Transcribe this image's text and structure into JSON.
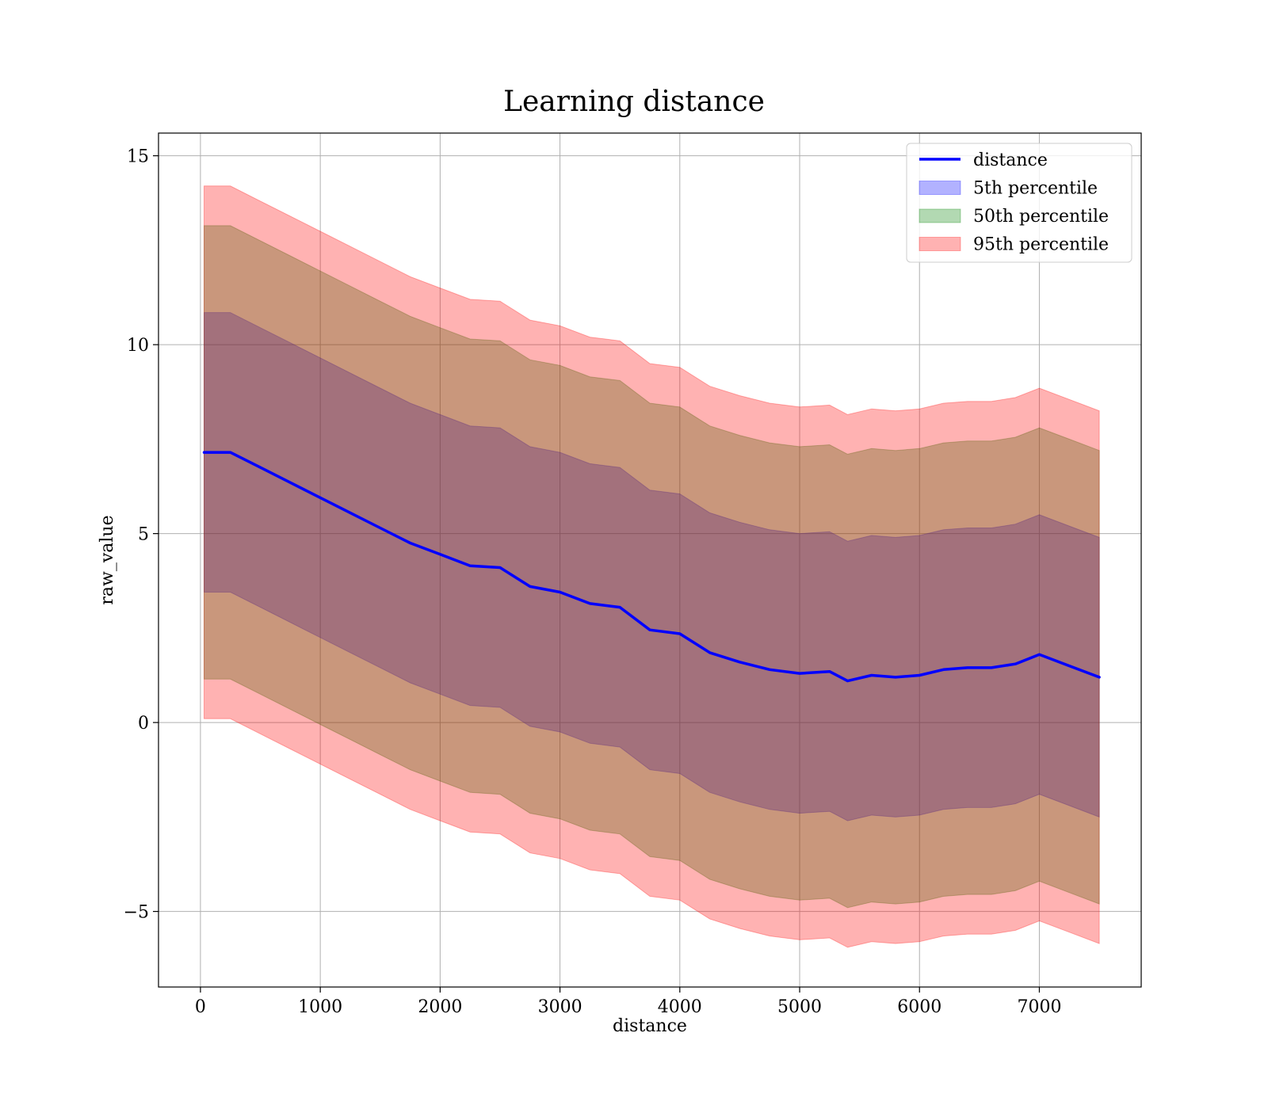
{
  "chart_data": {
    "type": "line",
    "title": "Learning distance",
    "xlabel": "distance",
    "ylabel": "raw_value",
    "xlim": [
      -350,
      7850
    ],
    "ylim": [
      -7,
      15.6
    ],
    "xticks": [
      0,
      1000,
      2000,
      3000,
      4000,
      5000,
      6000,
      7000
    ],
    "xtick_labels": [
      "0",
      "1000",
      "2000",
      "3000",
      "4000",
      "5000",
      "6000",
      "7000"
    ],
    "yticks": [
      -5,
      0,
      5,
      10,
      15
    ],
    "ytick_labels": [
      "−5",
      "0",
      "5",
      "10",
      "15"
    ],
    "grid": true,
    "legend_position": "top-right",
    "x": [
      30,
      250,
      500,
      750,
      1000,
      1250,
      1500,
      1750,
      2000,
      2250,
      2500,
      2750,
      3000,
      3250,
      3500,
      3750,
      4000,
      4250,
      4500,
      4750,
      5000,
      5250,
      5400,
      5600,
      5800,
      6000,
      6200,
      6400,
      6600,
      6800,
      7000,
      7250,
      7500
    ],
    "series": [
      {
        "name": "distance",
        "kind": "line",
        "color": "#0000ff",
        "values": [
          7.15,
          7.15,
          6.75,
          6.35,
          5.95,
          5.55,
          5.15,
          4.75,
          4.45,
          4.15,
          4.1,
          3.6,
          3.45,
          3.15,
          3.05,
          2.45,
          2.35,
          1.85,
          1.6,
          1.4,
          1.3,
          1.35,
          1.1,
          1.25,
          1.2,
          1.25,
          1.4,
          1.45,
          1.45,
          1.55,
          1.8,
          1.5,
          1.2
        ]
      },
      {
        "name": "5th percentile",
        "kind": "band",
        "color": "#0000ff",
        "opacity": 0.3,
        "upper": [
          10.85,
          10.85,
          10.45,
          10.05,
          9.65,
          9.25,
          8.85,
          8.45,
          8.15,
          7.85,
          7.8,
          7.3,
          7.15,
          6.85,
          6.75,
          6.15,
          6.05,
          5.55,
          5.3,
          5.1,
          5.0,
          5.05,
          4.8,
          4.95,
          4.9,
          4.95,
          5.1,
          5.15,
          5.15,
          5.25,
          5.5,
          5.2,
          4.9
        ],
        "lower": [
          3.45,
          3.45,
          3.05,
          2.65,
          2.25,
          1.85,
          1.45,
          1.05,
          0.75,
          0.45,
          0.4,
          -0.1,
          -0.25,
          -0.55,
          -0.65,
          -1.25,
          -1.35,
          -1.85,
          -2.1,
          -2.3,
          -2.4,
          -2.35,
          -2.6,
          -2.45,
          -2.5,
          -2.45,
          -2.3,
          -2.25,
          -2.25,
          -2.15,
          -1.9,
          -2.2,
          -2.5
        ]
      },
      {
        "name": "50th percentile",
        "kind": "band",
        "color": "#008000",
        "opacity": 0.3,
        "upper": [
          13.15,
          13.15,
          12.75,
          12.35,
          11.95,
          11.55,
          11.15,
          10.75,
          10.45,
          10.15,
          10.1,
          9.6,
          9.45,
          9.15,
          9.05,
          8.45,
          8.35,
          7.85,
          7.6,
          7.4,
          7.3,
          7.35,
          7.1,
          7.25,
          7.2,
          7.25,
          7.4,
          7.45,
          7.45,
          7.55,
          7.8,
          7.5,
          7.2
        ],
        "lower": [
          1.15,
          1.15,
          0.75,
          0.35,
          -0.05,
          -0.45,
          -0.85,
          -1.25,
          -1.55,
          -1.85,
          -1.9,
          -2.4,
          -2.55,
          -2.85,
          -2.95,
          -3.55,
          -3.65,
          -4.15,
          -4.4,
          -4.6,
          -4.7,
          -4.65,
          -4.9,
          -4.75,
          -4.8,
          -4.75,
          -4.6,
          -4.55,
          -4.55,
          -4.45,
          -4.2,
          -4.5,
          -4.8
        ]
      },
      {
        "name": "95th percentile",
        "kind": "band",
        "color": "#ff0000",
        "opacity": 0.3,
        "upper": [
          14.2,
          14.2,
          13.8,
          13.4,
          13.0,
          12.6,
          12.2,
          11.8,
          11.5,
          11.2,
          11.15,
          10.65,
          10.5,
          10.2,
          10.1,
          9.5,
          9.4,
          8.9,
          8.65,
          8.45,
          8.35,
          8.4,
          8.15,
          8.3,
          8.25,
          8.3,
          8.45,
          8.5,
          8.5,
          8.6,
          8.85,
          8.55,
          8.25
        ],
        "lower": [
          0.1,
          0.1,
          -0.3,
          -0.7,
          -1.1,
          -1.5,
          -1.9,
          -2.3,
          -2.6,
          -2.9,
          -2.95,
          -3.45,
          -3.6,
          -3.9,
          -4.0,
          -4.6,
          -4.7,
          -5.2,
          -5.45,
          -5.65,
          -5.75,
          -5.7,
          -5.95,
          -5.8,
          -5.85,
          -5.8,
          -5.65,
          -5.6,
          -5.6,
          -5.5,
          -5.25,
          -5.55,
          -5.85
        ]
      }
    ]
  }
}
